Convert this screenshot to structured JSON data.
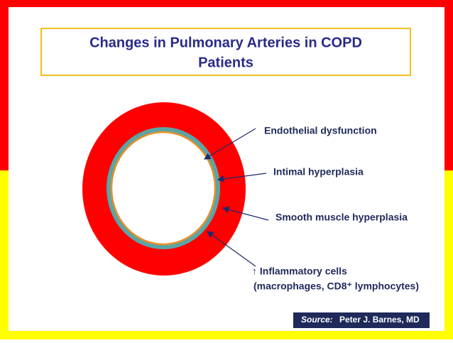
{
  "title": {
    "lines": [
      "Changes in Pulmonary Arteries in COPD",
      "Patients"
    ]
  },
  "labels": [
    "Endothelial dysfunction",
    "Intimal hyperplasia",
    "Smooth muscle hyperplasia",
    "↑ Inflammatory cells",
    "(macrophages, CD8⁺ lymphocytes)"
  ],
  "source": {
    "label": "Source:",
    "text": "Peter J. Barnes, MD"
  }
}
